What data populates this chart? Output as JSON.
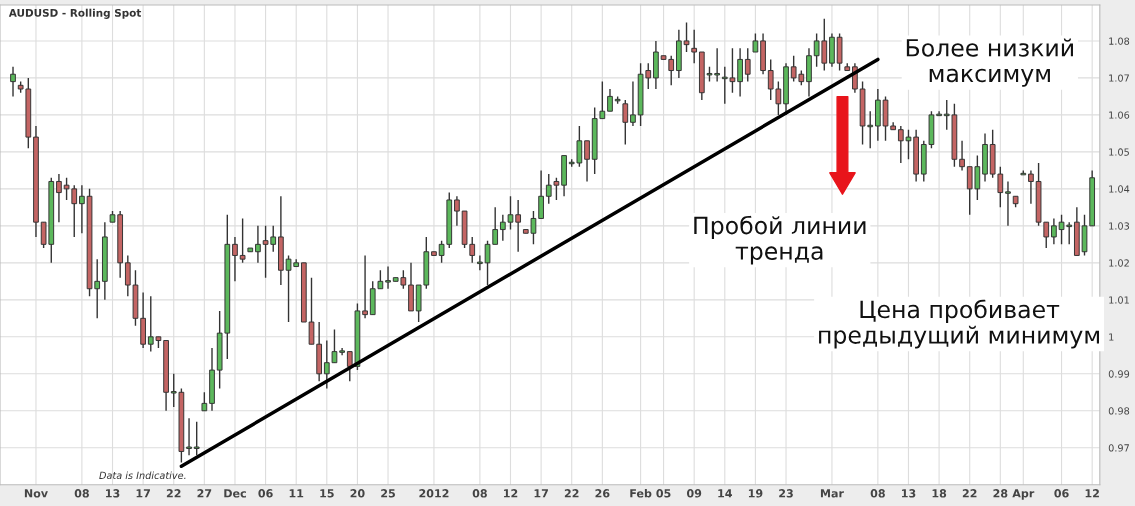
{
  "chart_data": {
    "type": "candlestick",
    "title": "AUDUSD - Rolling Spot",
    "categories": [
      null,
      null,
      null,
      "Nov",
      null,
      null,
      null,
      null,
      null,
      "08",
      null,
      null,
      null,
      "13",
      null,
      null,
      null,
      "17",
      null,
      null,
      null,
      "22",
      null,
      null,
      null,
      "27",
      null,
      null,
      null,
      "Dec",
      null,
      null,
      null,
      "06",
      null,
      null,
      null,
      "11",
      null,
      null,
      null,
      "15",
      null,
      null,
      null,
      "20",
      null,
      null,
      null,
      "25",
      null,
      null,
      null,
      null,
      null,
      "2012",
      null,
      null,
      null,
      null,
      null,
      "08",
      null,
      null,
      null,
      "12",
      null,
      null,
      null,
      "17",
      null,
      null,
      null,
      "22",
      null,
      null,
      null,
      "26",
      null,
      null,
      null,
      null,
      "Feb",
      null,
      null,
      "05",
      null,
      null,
      null,
      "09",
      null,
      null,
      null,
      "14",
      null,
      null,
      null,
      "19",
      null,
      null,
      null,
      "23",
      null,
      null,
      null,
      null,
      null,
      "Mar",
      null,
      null,
      null,
      null,
      null,
      "08",
      null,
      null,
      null,
      "13",
      null,
      null,
      null,
      "18",
      null,
      null,
      null,
      "22",
      null,
      null,
      null,
      "28",
      null,
      null,
      "Apr",
      null,
      null,
      null,
      null,
      "06",
      null,
      null,
      null,
      "12"
    ],
    "ohlc": [
      [
        1.069,
        1.073,
        1.065,
        1.071
      ],
      [
        1.068,
        1.069,
        1.066,
        1.067
      ],
      [
        1.067,
        1.07,
        1.051,
        1.054
      ],
      [
        1.054,
        1.057,
        1.027,
        1.031
      ],
      [
        1.031,
        1.031,
        1.024,
        1.025
      ],
      [
        1.025,
        1.043,
        1.02,
        1.042
      ],
      [
        1.042,
        1.044,
        1.031,
        1.039
      ],
      [
        1.041,
        1.043,
        1.037,
        1.04
      ],
      [
        1.04,
        1.041,
        1.027,
        1.036
      ],
      [
        1.036,
        1.041,
        1.028,
        1.038
      ],
      [
        1.038,
        1.04,
        1.011,
        1.013
      ],
      [
        1.013,
        1.021,
        1.005,
        1.015
      ],
      [
        1.015,
        1.031,
        1.01,
        1.027
      ],
      [
        1.031,
        1.034,
        1.031,
        1.033
      ],
      [
        1.033,
        1.034,
        1.016,
        1.02
      ],
      [
        1.02,
        1.022,
        1.011,
        1.014
      ],
      [
        1.014,
        1.018,
        1.003,
        1.005
      ],
      [
        1.005,
        1.012,
        0.997,
        0.998
      ],
      [
        0.998,
        1.011,
        0.996,
        1.0
      ],
      [
        1.0,
        1.0,
        0.997,
        0.999
      ],
      [
        0.999,
        0.999,
        0.98,
        0.985
      ],
      [
        0.985,
        0.99,
        0.981,
        0.985
      ],
      [
        0.985,
        0.986,
        0.966,
        0.969
      ],
      [
        0.97,
        0.978,
        0.968,
        0.97
      ],
      [
        0.97,
        0.977,
        0.968,
        0.97
      ],
      [
        0.98,
        0.985,
        0.98,
        0.982
      ],
      [
        0.982,
        0.997,
        0.98,
        0.991
      ],
      [
        0.991,
        1.007,
        0.986,
        1.001
      ],
      [
        1.001,
        1.033,
        0.994,
        1.025
      ],
      [
        1.025,
        1.027,
        1.015,
        1.022
      ],
      [
        1.022,
        1.032,
        1.02,
        1.021
      ],
      [
        1.023,
        1.024,
        1.023,
        1.024
      ],
      [
        1.023,
        1.03,
        1.02,
        1.025
      ],
      [
        1.026,
        1.03,
        1.016,
        1.025
      ],
      [
        1.025,
        1.03,
        1.023,
        1.027
      ],
      [
        1.027,
        1.038,
        1.014,
        1.018
      ],
      [
        1.018,
        1.022,
        1.004,
        1.021
      ],
      [
        1.019,
        1.021,
        1.019,
        1.02
      ],
      [
        1.02,
        1.02,
        1.004,
        1.004
      ],
      [
        1.004,
        1.016,
        0.998,
        0.998
      ],
      [
        0.998,
        1.004,
        0.988,
        0.99
      ],
      [
        0.99,
        0.999,
        0.986,
        0.993
      ],
      [
        0.993,
        1.002,
        0.993,
        0.996
      ],
      [
        0.996,
        0.997,
        0.995,
        0.996
      ],
      [
        0.996,
        0.996,
        0.988,
        0.992
      ],
      [
        0.992,
        1.009,
        0.991,
        1.007
      ],
      [
        1.007,
        1.022,
        1.005,
        1.006
      ],
      [
        1.006,
        1.015,
        1.006,
        1.013
      ],
      [
        1.013,
        1.018,
        1.013,
        1.015
      ],
      [
        1.015,
        1.019,
        1.013,
        1.015
      ],
      [
        1.015,
        1.016,
        1.015,
        1.016
      ],
      [
        1.016,
        1.018,
        1.013,
        1.014
      ],
      [
        1.014,
        1.02,
        1.007,
        1.007
      ],
      [
        1.007,
        1.014,
        1.004,
        1.014
      ],
      [
        1.014,
        1.027,
        1.013,
        1.023
      ],
      [
        1.023,
        1.023,
        1.022,
        1.022
      ],
      [
        1.022,
        1.026,
        1.02,
        1.025
      ],
      [
        1.025,
        1.039,
        1.024,
        1.037
      ],
      [
        1.037,
        1.038,
        1.03,
        1.034
      ],
      [
        1.034,
        1.034,
        1.024,
        1.025
      ],
      [
        1.025,
        1.027,
        1.02,
        1.022
      ],
      [
        1.02,
        1.022,
        1.018,
        1.02
      ],
      [
        1.02,
        1.026,
        1.014,
        1.025
      ],
      [
        1.025,
        1.035,
        1.025,
        1.029
      ],
      [
        1.029,
        1.033,
        1.026,
        1.031
      ],
      [
        1.031,
        1.038,
        1.029,
        1.033
      ],
      [
        1.033,
        1.037,
        1.023,
        1.031
      ],
      [
        1.029,
        1.029,
        1.028,
        1.028
      ],
      [
        1.028,
        1.034,
        1.025,
        1.032
      ],
      [
        1.032,
        1.045,
        1.032,
        1.038
      ],
      [
        1.038,
        1.044,
        1.036,
        1.041
      ],
      [
        1.042,
        1.043,
        1.037,
        1.041
      ],
      [
        1.041,
        1.049,
        1.038,
        1.049
      ],
      [
        1.047,
        1.048,
        1.046,
        1.047
      ],
      [
        1.047,
        1.057,
        1.046,
        1.053
      ],
      [
        1.053,
        1.053,
        1.042,
        1.048
      ],
      [
        1.048,
        1.062,
        1.044,
        1.059
      ],
      [
        1.059,
        1.069,
        1.059,
        1.061
      ],
      [
        1.061,
        1.067,
        1.061,
        1.065
      ],
      [
        1.064,
        1.065,
        1.063,
        1.064
      ],
      [
        1.063,
        1.064,
        1.052,
        1.058
      ],
      [
        1.058,
        1.069,
        1.057,
        1.06
      ],
      [
        1.06,
        1.074,
        1.057,
        1.071
      ],
      [
        1.072,
        1.074,
        1.067,
        1.07
      ],
      [
        1.07,
        1.08,
        1.067,
        1.077
      ],
      [
        1.076,
        1.076,
        1.075,
        1.075
      ],
      [
        1.075,
        1.076,
        1.068,
        1.072
      ],
      [
        1.072,
        1.083,
        1.07,
        1.08
      ],
      [
        1.08,
        1.085,
        1.077,
        1.079
      ],
      [
        1.078,
        1.083,
        1.074,
        1.077
      ],
      [
        1.077,
        1.077,
        1.064,
        1.066
      ],
      [
        1.071,
        1.073,
        1.069,
        1.071
      ],
      [
        1.071,
        1.078,
        1.069,
        1.071
      ],
      [
        1.07,
        1.073,
        1.063,
        1.07
      ],
      [
        1.07,
        1.078,
        1.066,
        1.069
      ],
      [
        1.069,
        1.078,
        1.065,
        1.075
      ],
      [
        1.075,
        1.078,
        1.069,
        1.071
      ],
      [
        1.077,
        1.082,
        1.077,
        1.08
      ],
      [
        1.08,
        1.082,
        1.071,
        1.072
      ],
      [
        1.072,
        1.075,
        1.064,
        1.067
      ],
      [
        1.067,
        1.069,
        1.06,
        1.063
      ],
      [
        1.063,
        1.074,
        1.06,
        1.073
      ],
      [
        1.073,
        1.076,
        1.069,
        1.07
      ],
      [
        1.071,
        1.072,
        1.068,
        1.069
      ],
      [
        1.069,
        1.078,
        1.065,
        1.076
      ],
      [
        1.076,
        1.082,
        1.073,
        1.08
      ],
      [
        1.08,
        1.086,
        1.072,
        1.074
      ],
      [
        1.074,
        1.082,
        1.073,
        1.081
      ],
      [
        1.081,
        1.082,
        1.072,
        1.074
      ],
      [
        1.073,
        1.074,
        1.072,
        1.072
      ],
      [
        1.073,
        1.074,
        1.066,
        1.067
      ],
      [
        1.067,
        1.069,
        1.052,
        1.057
      ],
      [
        1.057,
        1.061,
        1.051,
        1.057
      ],
      [
        1.057,
        1.067,
        1.053,
        1.064
      ],
      [
        1.064,
        1.065,
        1.053,
        1.057
      ],
      [
        1.057,
        1.058,
        1.056,
        1.056
      ],
      [
        1.056,
        1.057,
        1.047,
        1.053
      ],
      [
        1.053,
        1.056,
        1.048,
        1.054
      ],
      [
        1.054,
        1.056,
        1.042,
        1.044
      ],
      [
        1.044,
        1.053,
        1.042,
        1.052
      ],
      [
        1.052,
        1.061,
        1.051,
        1.06
      ],
      [
        1.06,
        1.061,
        1.06,
        1.06
      ],
      [
        1.06,
        1.064,
        1.056,
        1.06
      ],
      [
        1.06,
        1.063,
        1.046,
        1.048
      ],
      [
        1.048,
        1.053,
        1.045,
        1.046
      ],
      [
        1.046,
        1.046,
        1.033,
        1.04
      ],
      [
        1.04,
        1.049,
        1.037,
        1.046
      ],
      [
        1.044,
        1.055,
        1.042,
        1.052
      ],
      [
        1.052,
        1.056,
        1.043,
        1.044
      ],
      [
        1.044,
        1.046,
        1.035,
        1.039
      ],
      [
        1.039,
        1.042,
        1.03,
        1.039
      ],
      [
        1.038,
        1.038,
        1.035,
        1.036
      ],
      [
        1.044,
        1.045,
        1.044,
        1.044
      ],
      [
        1.044,
        1.045,
        1.036,
        1.042
      ],
      [
        1.042,
        1.047,
        1.03,
        1.031
      ],
      [
        1.031,
        1.031,
        1.024,
        1.027
      ],
      [
        1.027,
        1.032,
        1.025,
        1.03
      ],
      [
        1.029,
        1.033,
        1.025,
        1.031
      ],
      [
        1.03,
        1.031,
        1.025,
        1.03
      ],
      [
        1.031,
        1.035,
        1.022,
        1.022
      ],
      [
        1.023,
        1.033,
        1.022,
        1.03
      ],
      [
        1.03,
        1.045,
        1.03,
        1.043
      ]
    ],
    "colors": [
      "#5cb85c",
      "#c46564",
      "#c46564",
      "#c46564",
      "#c46564",
      "#5cb85c",
      "#c46564",
      "#c46564",
      "#c46564",
      "#5cb85c",
      "#c46564",
      "#5cb85c",
      "#5cb85c",
      "#5cb85c",
      "#c46564",
      "#c46564",
      "#c46564",
      "#c46564",
      "#5cb85c",
      "#c46564",
      "#c46564",
      "#5cb85c",
      "#c46564",
      "#5cb85c",
      "#5cb85c",
      "#5cb85c",
      "#5cb85c",
      "#5cb85c",
      "#5cb85c",
      "#c46564",
      "#c46564",
      "#5cb85c",
      "#5cb85c",
      "#c46564",
      "#5cb85c",
      "#c46564",
      "#5cb85c",
      "#5cb85c",
      "#c46564",
      "#c46564",
      "#c46564",
      "#5cb85c",
      "#5cb85c",
      "#5cb85c",
      "#c46564",
      "#5cb85c",
      "#c46564",
      "#5cb85c",
      "#5cb85c",
      "#5cb85c",
      "#5cb85c",
      "#c46564",
      "#c46564",
      "#5cb85c",
      "#5cb85c",
      "#c46564",
      "#5cb85c",
      "#5cb85c",
      "#c46564",
      "#c46564",
      "#c46564",
      "#5cb85c",
      "#5cb85c",
      "#5cb85c",
      "#5cb85c",
      "#5cb85c",
      "#c46564",
      "#c46564",
      "#5cb85c",
      "#5cb85c",
      "#5cb85c",
      "#c46564",
      "#5cb85c",
      "#5cb85c",
      "#5cb85c",
      "#c46564",
      "#5cb85c",
      "#5cb85c",
      "#5cb85c",
      "#5cb85c",
      "#c46564",
      "#5cb85c",
      "#5cb85c",
      "#c46564",
      "#5cb85c",
      "#c46564",
      "#c46564",
      "#5cb85c",
      "#c46564",
      "#c46564",
      "#c46564",
      "#5cb85c",
      "#5cb85c",
      "#5cb85c",
      "#c46564",
      "#5cb85c",
      "#c46564",
      "#5cb85c",
      "#c46564",
      "#c46564",
      "#c46564",
      "#5cb85c",
      "#c46564",
      "#c46564",
      "#5cb85c",
      "#5cb85c",
      "#c46564",
      "#5cb85c",
      "#c46564",
      "#c46564",
      "#c46564",
      "#c46564",
      "#5cb85c",
      "#5cb85c",
      "#c46564",
      "#c46564",
      "#c46564",
      "#5cb85c",
      "#c46564",
      "#5cb85c",
      "#5cb85c",
      "#5cb85c",
      "#5cb85c",
      "#c46564",
      "#c46564",
      "#c46564",
      "#5cb85c",
      "#5cb85c",
      "#c46564",
      "#c46564",
      "#5cb85c",
      "#c46564",
      "#5cb85c",
      "#c46564",
      "#c46564",
      "#c46564",
      "#5cb85c",
      "#5cb85c",
      "#5cb85c",
      "#c46564",
      "#5cb85c",
      "#5cb85c"
    ],
    "series": [
      {
        "type": "line",
        "color": "#000000",
        "values": [
          null,
          null,
          null,
          null,
          null,
          null,
          null,
          null,
          null,
          null,
          null,
          null,
          null,
          null,
          null,
          null,
          null,
          null,
          null,
          null,
          null,
          null,
          0.965,
          null,
          null,
          null,
          null,
          null,
          null,
          null,
          null,
          null,
          null,
          null,
          null,
          null,
          null,
          null,
          null,
          null,
          null,
          null,
          null,
          null,
          null,
          null,
          null,
          null,
          null,
          null,
          null,
          null,
          null,
          null,
          null,
          null,
          null,
          null,
          null,
          null,
          null,
          null,
          null,
          null,
          null,
          null,
          null,
          null,
          null,
          null,
          null,
          null,
          null,
          null,
          null,
          null,
          null,
          null,
          null,
          null,
          null,
          null,
          null,
          null,
          null,
          null,
          null,
          null,
          null,
          null,
          null,
          null,
          null,
          null,
          null,
          null,
          null,
          null,
          null,
          null,
          null,
          null,
          null,
          null,
          null,
          null,
          null,
          null,
          null,
          null,
          null,
          null,
          null,
          1.075,
          null,
          null,
          null,
          null,
          null,
          null,
          null,
          null,
          null,
          null,
          null,
          null,
          null,
          null,
          null,
          null,
          null,
          null,
          null,
          null,
          null,
          null,
          null,
          null,
          null,
          null,
          null,
          null
        ]
      }
    ],
    "ylim": [
      0.96,
      1.0897
    ],
    "yticks": [
      0.97,
      0.98,
      0.99,
      1,
      1.01,
      1.02,
      1.03,
      1.04,
      1.05,
      1.06,
      1.07,
      1.08
    ],
    "grid": true,
    "annotations": [
      "Data is Indicative.",
      "Более низкий\nмаксимум",
      "Пробой линии\nтренда",
      "Цена пробивает\nпредыдущий минимум"
    ]
  }
}
